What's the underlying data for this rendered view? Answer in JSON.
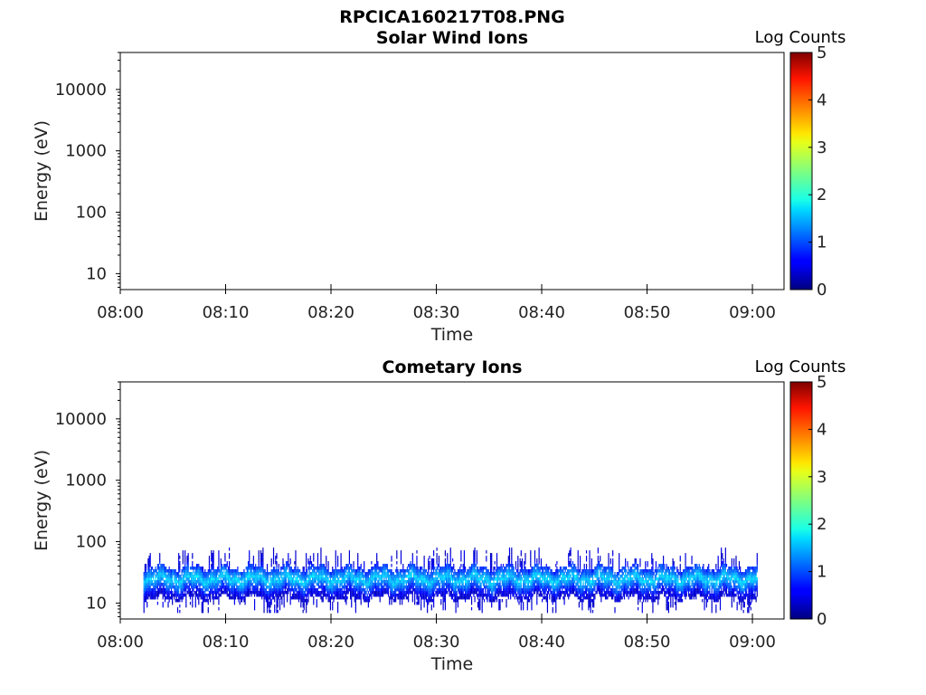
{
  "figure_title": "RPCICA160217T08.PNG",
  "chart_data": [
    {
      "type": "heatmap",
      "title": "Solar Wind Ions",
      "xlabel": "Time",
      "ylabel": "Energy (eV)",
      "x_ticks": [
        "08:00",
        "08:10",
        "08:20",
        "08:30",
        "08:40",
        "08:50",
        "09:00"
      ],
      "xlim_minutes": [
        0,
        63
      ],
      "y_ticks": [
        "10",
        "100",
        "1000",
        "10000"
      ],
      "y_scale": "log",
      "ylim": [
        5.5,
        40000
      ],
      "colorbar": {
        "label": "Log Counts",
        "ticks": [
          "0",
          "1",
          "2",
          "3",
          "4",
          "5"
        ],
        "range": [
          0,
          5
        ],
        "colormap": "jet"
      },
      "data_present": false
    },
    {
      "type": "heatmap",
      "title": "Cometary Ions",
      "xlabel": "Time",
      "ylabel": "Energy (eV)",
      "x_ticks": [
        "08:00",
        "08:10",
        "08:20",
        "08:30",
        "08:40",
        "08:50",
        "09:00"
      ],
      "xlim_minutes": [
        0,
        63
      ],
      "y_ticks": [
        "10",
        "100",
        "1000",
        "10000"
      ],
      "y_scale": "log",
      "ylim": [
        5.5,
        40000
      ],
      "colorbar": {
        "label": "Log Counts",
        "ticks": [
          "0",
          "1",
          "2",
          "3",
          "4",
          "5"
        ],
        "range": [
          0,
          5
        ],
        "colormap": "jet"
      },
      "data_present": true,
      "data_time_range_minutes": [
        2.2,
        60.5
      ],
      "band": {
        "core_energy_eV": 25,
        "core_log_counts": 1.7,
        "typical_energy_range_eV": [
          12,
          38
        ],
        "occasional_energy_range_eV": [
          7,
          80
        ]
      }
    }
  ]
}
